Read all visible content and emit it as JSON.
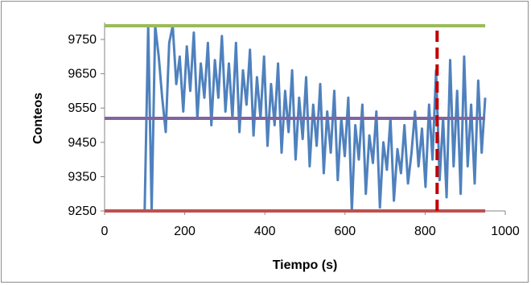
{
  "chart_data": {
    "type": "line",
    "title": "",
    "xlabel": "Tiempo (s)",
    "ylabel": "Conteos",
    "xlim": [
      0,
      1000
    ],
    "ylim": [
      9250,
      9790
    ],
    "x_ticks": [
      "0",
      "200",
      "400",
      "600",
      "800",
      "1000"
    ],
    "y_ticks": [
      "9250",
      "9350",
      "9450",
      "9550",
      "9650",
      "9750"
    ],
    "grid": false,
    "legend": "none",
    "series": [
      {
        "color": "#4f81bd",
        "style": "solid",
        "x_range": [
          100,
          950
        ],
        "y_range": [
          9250,
          9790
        ],
        "samples_y": [
          9250,
          9790,
          9250,
          9790,
          9700,
          9580,
          9480,
          9740,
          9790,
          9620,
          9700,
          9540,
          9730,
          9600,
          9770,
          9520,
          9680,
          9580,
          9740,
          9500,
          9690,
          9580,
          9760,
          9540,
          9680,
          9520,
          9740,
          9480,
          9660,
          9560,
          9720,
          9470,
          9640,
          9520,
          9700,
          9440,
          9620,
          9500,
          9680,
          9420,
          9600,
          9480,
          9660,
          9400,
          9580,
          9460,
          9640,
          9380,
          9560,
          9440,
          9620,
          9360,
          9540,
          9420,
          9600,
          9340,
          9520,
          9410,
          9580,
          9250,
          9500,
          9400,
          9560,
          9300,
          9470,
          9390,
          9540,
          9260,
          9450,
          9370,
          9520,
          9280,
          9430,
          9360,
          9500,
          9330,
          9420,
          9540,
          9380,
          9490,
          9320,
          9560,
          9400,
          9660,
          9340,
          9520,
          9290,
          9690,
          9380,
          9600,
          9300,
          9700,
          9380,
          9560,
          9330,
          9630,
          9420,
          9580
        ]
      },
      {
        "color": "#9bbb59",
        "style": "solid",
        "x": [
          0,
          950
        ],
        "y": [
          9790,
          9790
        ]
      },
      {
        "color": "#8064a2",
        "style": "solid",
        "x": [
          0,
          950
        ],
        "y": [
          9520,
          9520
        ]
      },
      {
        "color": "#c0504d",
        "style": "solid",
        "x": [
          0,
          950
        ],
        "y": [
          9250,
          9250
        ]
      },
      {
        "color": "#c00000",
        "style": "dashed",
        "x": [
          830,
          830
        ],
        "y": [
          9250,
          9790
        ]
      }
    ]
  }
}
